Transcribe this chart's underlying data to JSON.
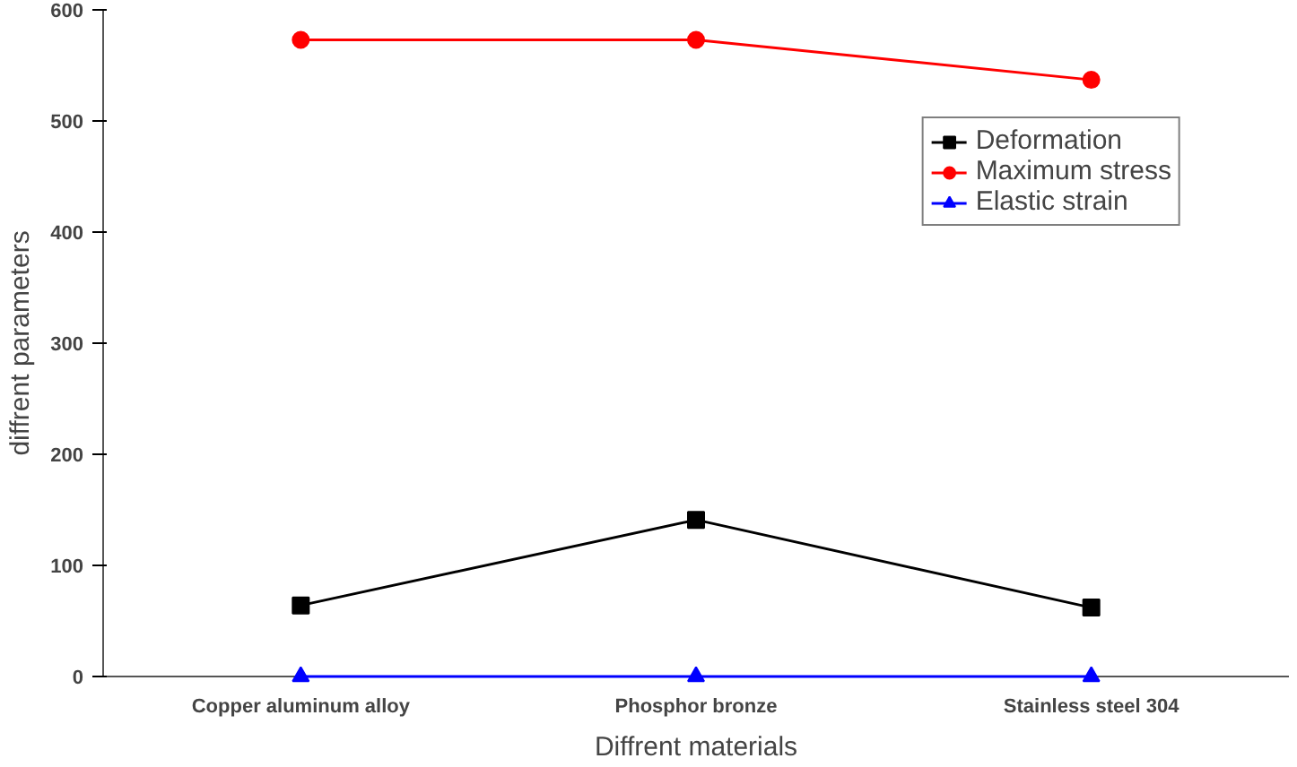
{
  "chart_data": {
    "type": "line",
    "xlabel": "Diffrent materials",
    "ylabel": "diffrent parameters",
    "categories": [
      "Copper aluminum alloy",
      "Phosphor bronze",
      "Stainless steel 304"
    ],
    "series": [
      {
        "name": "Deformation",
        "color": "#000000",
        "marker": "square",
        "values": [
          64,
          141,
          62
        ]
      },
      {
        "name": "Maximum stress",
        "color": "#ff0000",
        "marker": "circle",
        "values": [
          573,
          573,
          537
        ]
      },
      {
        "name": "Elastic strain",
        "color": "#0000ff",
        "marker": "triangle",
        "values": [
          0,
          0,
          0
        ]
      }
    ],
    "ylim": [
      0,
      600
    ],
    "yticks": [
      0,
      100,
      200,
      300,
      400,
      500,
      600
    ],
    "grid": false,
    "legend": "top right"
  }
}
